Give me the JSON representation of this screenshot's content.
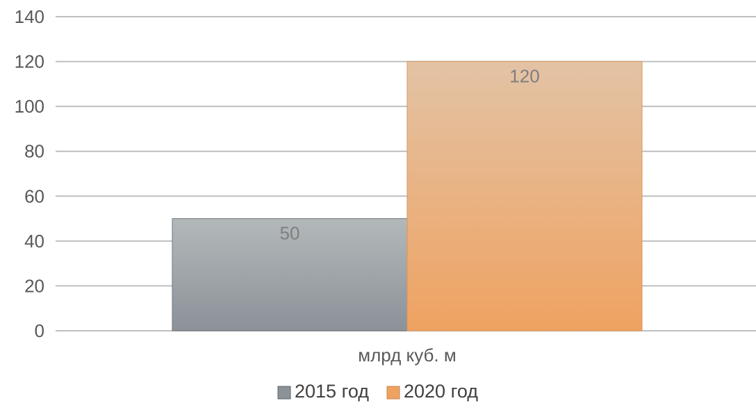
{
  "chart_data": {
    "type": "bar",
    "categories": [
      "млрд куб. м"
    ],
    "series": [
      {
        "name": "2015 год",
        "values": [
          50
        ],
        "color": "#8b9298",
        "color_light": "#b3b8ba"
      },
      {
        "name": "2020 год",
        "values": [
          120
        ],
        "color": "#efa261",
        "color_light": "#e3c3a5"
      }
    ],
    "data_labels": true,
    "ylim": [
      0,
      140
    ],
    "yticks": [
      0,
      20,
      40,
      60,
      80,
      100,
      120,
      140
    ],
    "grid": true,
    "legend_position": "bottom"
  }
}
